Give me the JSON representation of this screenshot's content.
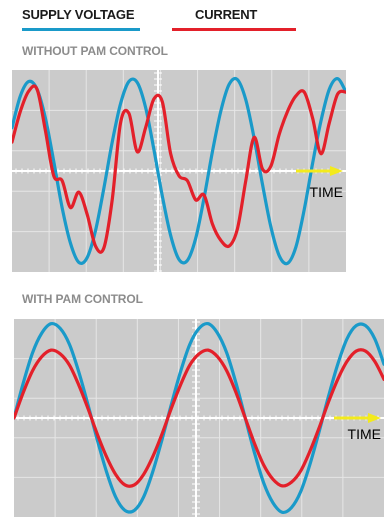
{
  "legend": {
    "voltage": {
      "label": "SUPPLY VOLTAGE",
      "color": "#1a9ac9"
    },
    "current": {
      "label": "CURRENT",
      "color": "#e3202a"
    }
  },
  "colors": {
    "panel": "#cbcbcb",
    "grid": "#e6e6e6",
    "axis": "#ffffff",
    "arrow": "#f3ea1c"
  },
  "chart_data": [
    {
      "type": "line",
      "title": "WITHOUT PAM CONTROL",
      "x_axis_label": "TIME",
      "xlim": [
        0,
        20
      ],
      "ylim": [
        -1.05,
        1.05
      ],
      "grid": true,
      "series": [
        {
          "name": "SUPPLY VOLTAGE",
          "x": [
            0,
            0.5,
            1,
            1.5,
            2,
            2.5,
            3,
            3.5,
            4,
            4.5,
            5,
            5.5,
            6,
            6.5,
            7,
            7.5,
            8,
            8.5,
            9,
            9.5,
            10,
            10.5,
            11,
            11.5,
            12,
            12.5,
            13,
            13.5,
            14,
            14.5,
            15,
            15.5,
            16,
            16.5,
            17,
            17.5,
            18,
            18.5,
            19,
            19.5,
            20
          ],
          "y": [
            0.45,
            0.78,
            0.93,
            0.85,
            0.55,
            0.1,
            -0.38,
            -0.75,
            -0.95,
            -0.9,
            -0.62,
            -0.18,
            0.3,
            0.7,
            0.93,
            0.92,
            0.66,
            0.22,
            -0.26,
            -0.67,
            -0.92,
            -0.93,
            -0.7,
            -0.28,
            0.2,
            0.62,
            0.9,
            0.95,
            0.74,
            0.34,
            -0.14,
            -0.58,
            -0.88,
            -0.96,
            -0.79,
            -0.4,
            0.08,
            0.52,
            0.85,
            0.96,
            0.82
          ]
        },
        {
          "name": "CURRENT",
          "x": [
            0,
            0.5,
            1,
            1.5,
            2,
            2.5,
            3,
            3.5,
            4,
            4.5,
            5,
            5.5,
            6,
            6.5,
            7,
            7.5,
            8,
            8.5,
            9,
            9.5,
            10,
            10.5,
            11,
            11.5,
            12,
            12.5,
            13,
            13.5,
            14,
            14.5,
            15,
            15.5,
            16,
            16.5,
            17,
            17.5,
            18,
            18.5,
            19,
            19.5,
            20
          ],
          "y": [
            0.3,
            0.62,
            0.83,
            0.85,
            0.42,
            -0.05,
            -0.1,
            -0.38,
            -0.22,
            -0.45,
            -0.78,
            -0.8,
            -0.3,
            0.5,
            0.6,
            0.2,
            0.45,
            0.75,
            0.72,
            0.18,
            -0.05,
            -0.1,
            -0.3,
            -0.25,
            -0.55,
            -0.72,
            -0.78,
            -0.6,
            -0.1,
            0.35,
            0.02,
            0.05,
            0.38,
            0.62,
            0.78,
            0.82,
            0.55,
            0.18,
            0.5,
            0.8,
            0.82
          ]
        }
      ]
    },
    {
      "type": "line",
      "title": "WITH PAM CONTROL",
      "x_axis_label": "TIME",
      "xlim": [
        0,
        20
      ],
      "ylim": [
        -1.05,
        1.05
      ],
      "grid": true,
      "series": [
        {
          "name": "SUPPLY VOLTAGE",
          "x": [
            0,
            0.5,
            1,
            1.5,
            2,
            2.5,
            3,
            3.5,
            4,
            4.5,
            5,
            5.5,
            6,
            6.5,
            7,
            7.5,
            8,
            8.5,
            9,
            9.5,
            10,
            10.5,
            11,
            11.5,
            12,
            12.5,
            13,
            13.5,
            14,
            14.5,
            15,
            15.5,
            16,
            16.5,
            17,
            17.5,
            18,
            18.5,
            19,
            19.5,
            20
          ],
          "y": [
            0,
            0.37,
            0.69,
            0.9,
            1,
            0.95,
            0.78,
            0.49,
            0.14,
            -0.23,
            -0.57,
            -0.84,
            -0.98,
            -0.98,
            -0.84,
            -0.57,
            -0.23,
            0.14,
            0.49,
            0.78,
            0.95,
            1,
            0.9,
            0.69,
            0.37,
            0,
            -0.37,
            -0.69,
            -0.9,
            -1,
            -0.95,
            -0.78,
            -0.49,
            -0.14,
            0.23,
            0.57,
            0.84,
            0.98,
            0.98,
            0.84,
            0.57
          ]
        },
        {
          "name": "CURRENT",
          "x": [
            0,
            0.5,
            1,
            1.5,
            2,
            2.5,
            3,
            3.5,
            4,
            4.5,
            5,
            5.5,
            6,
            6.5,
            7,
            7.5,
            8,
            8.5,
            9,
            9.5,
            10,
            10.5,
            11,
            11.5,
            12,
            12.5,
            13,
            13.5,
            14,
            14.5,
            15,
            15.5,
            16,
            16.5,
            17,
            17.5,
            18,
            18.5,
            19,
            19.5,
            20
          ],
          "y": [
            0,
            0.27,
            0.5,
            0.65,
            0.72,
            0.68,
            0.56,
            0.35,
            0.1,
            -0.17,
            -0.41,
            -0.6,
            -0.71,
            -0.71,
            -0.6,
            -0.41,
            -0.17,
            0.1,
            0.35,
            0.56,
            0.68,
            0.72,
            0.65,
            0.5,
            0.27,
            0,
            -0.27,
            -0.5,
            -0.65,
            -0.72,
            -0.68,
            -0.56,
            -0.35,
            -0.1,
            0.17,
            0.41,
            0.6,
            0.71,
            0.71,
            0.6,
            0.41
          ]
        }
      ]
    }
  ]
}
